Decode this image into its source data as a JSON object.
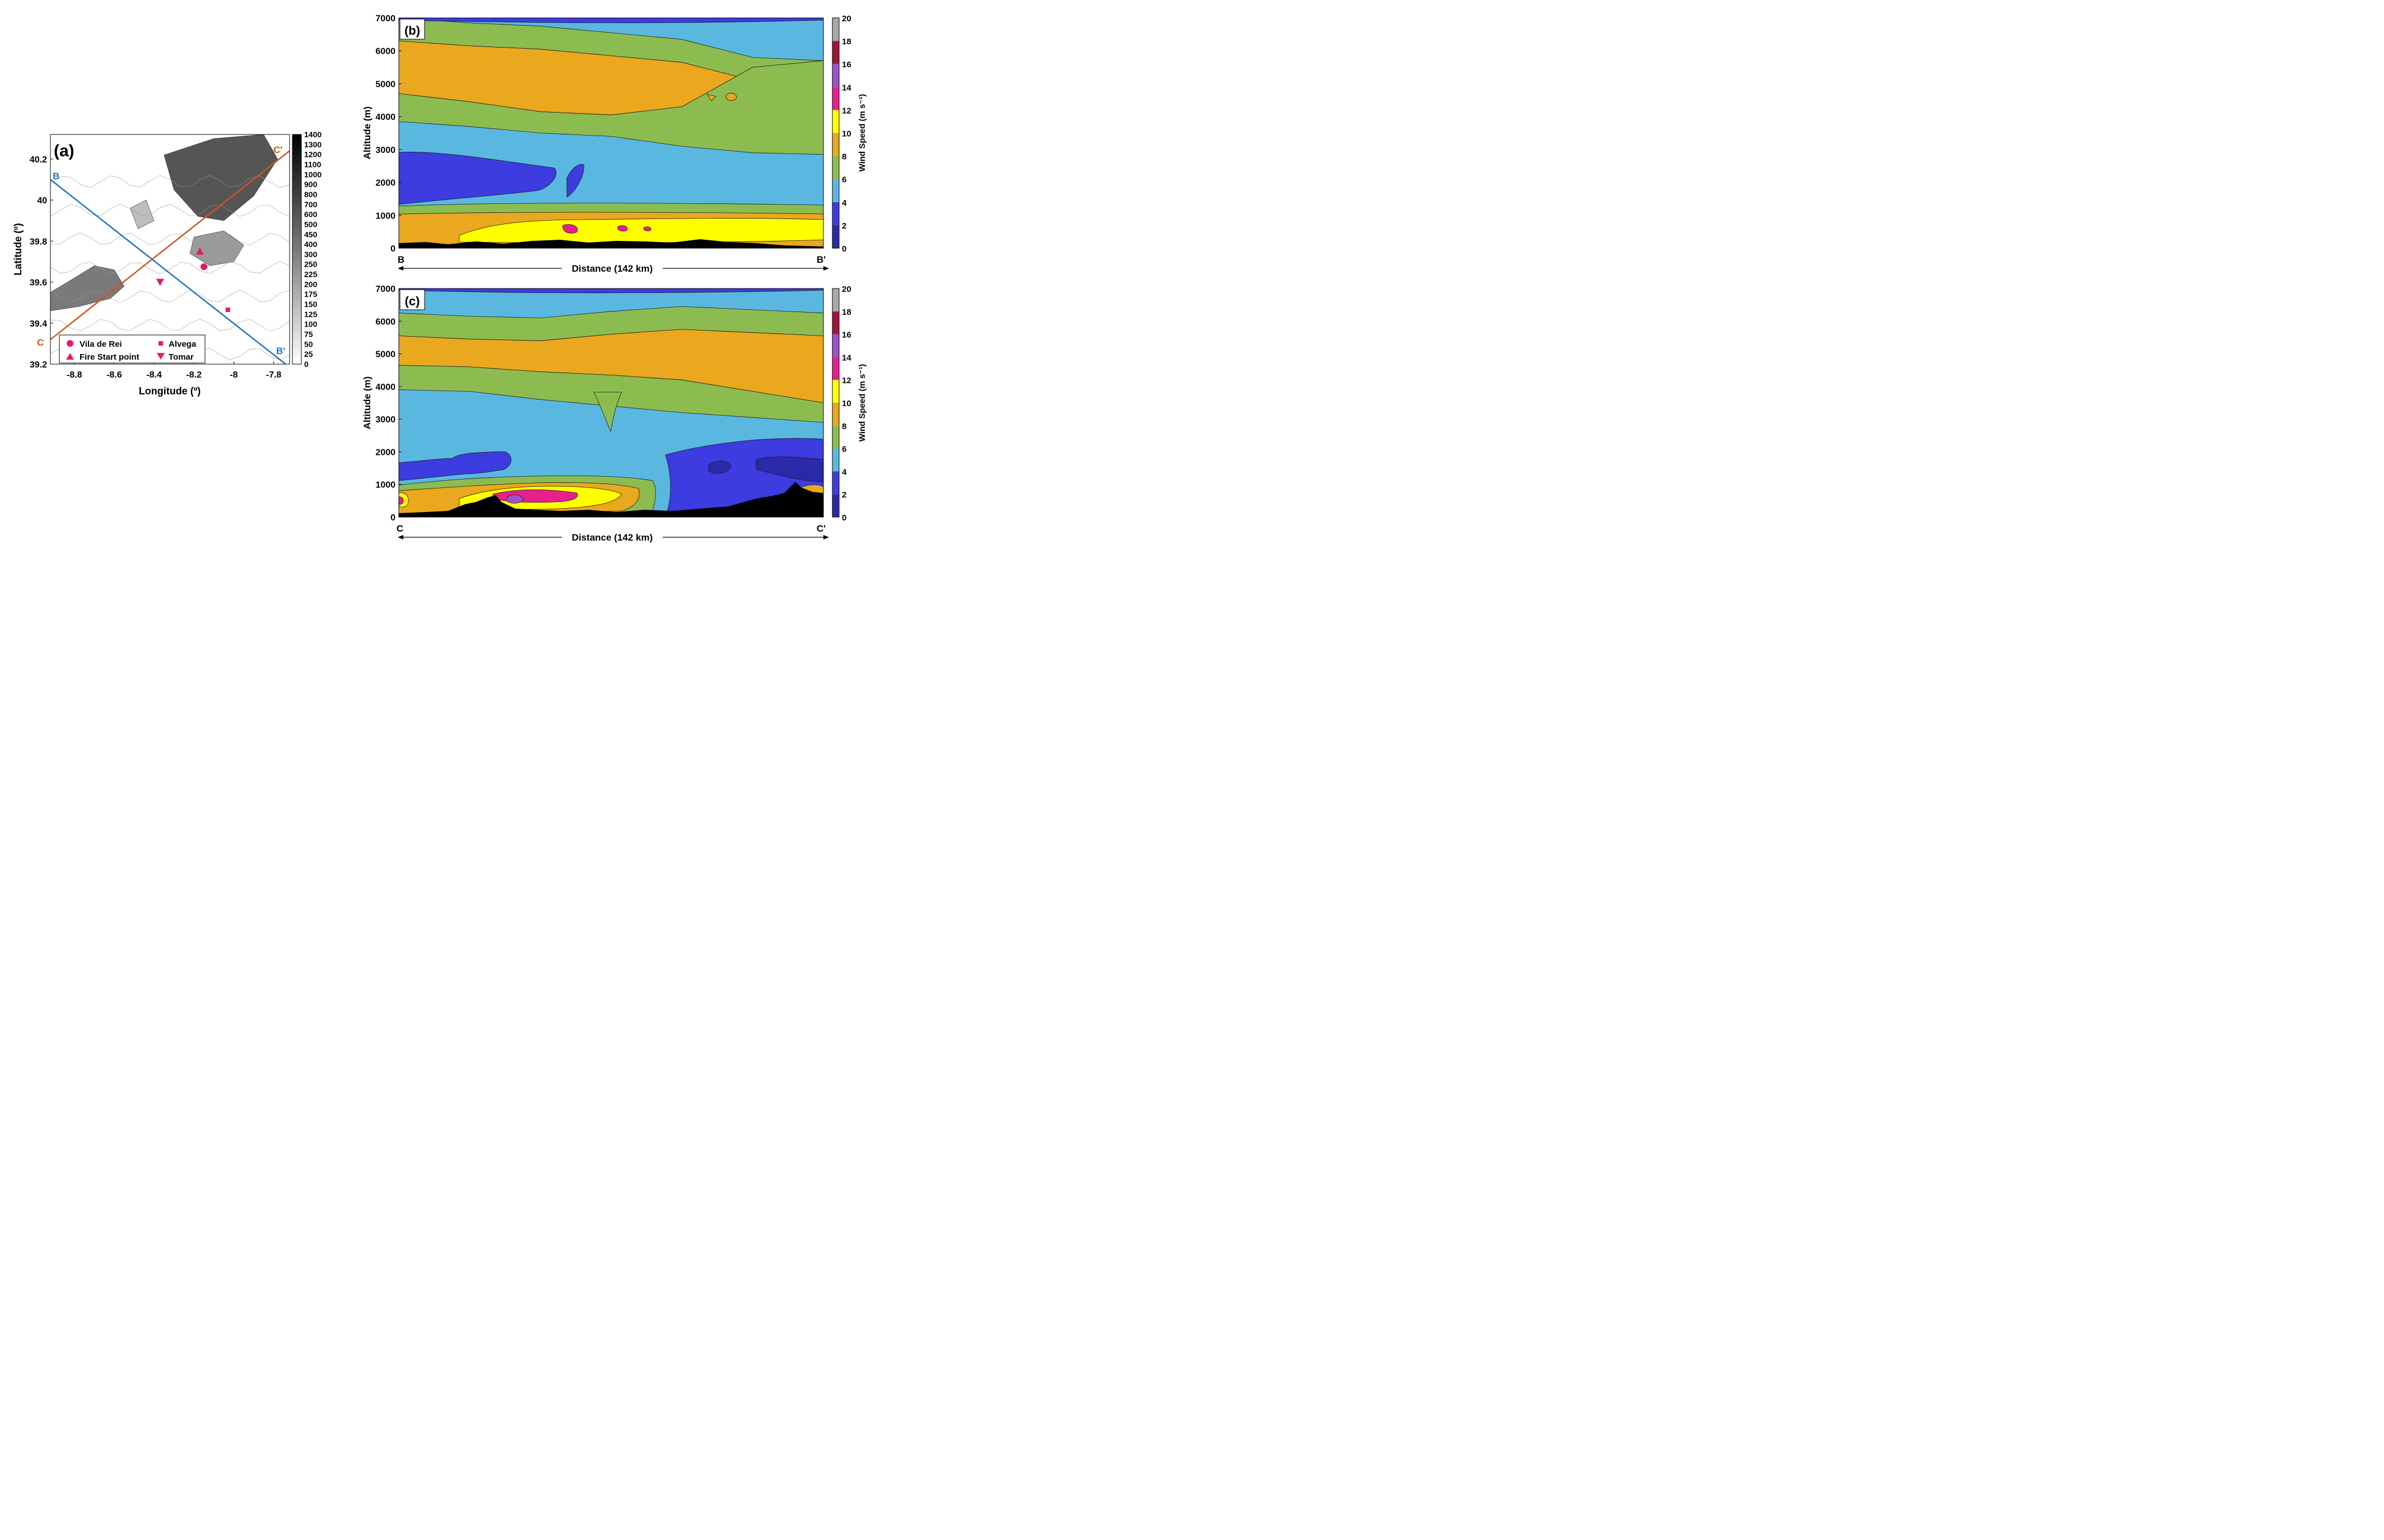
{
  "chart_data": [
    {
      "id": "a",
      "type": "heatmap",
      "panel_label": "(a)",
      "xlabel": "Longitude (º)",
      "ylabel": "Latitude (º)",
      "xlim": [
        -8.92,
        -7.72
      ],
      "ylim": [
        39.2,
        40.32
      ],
      "xticks": [
        -8.8,
        -8.6,
        -8.4,
        -8.2,
        -8,
        -7.8
      ],
      "xtick_labels": [
        "-8.8",
        "-8.6",
        "-8.4",
        "-8.2",
        "-8",
        "-7.8"
      ],
      "yticks": [
        39.2,
        39.4,
        39.6,
        39.8,
        40,
        40.2
      ],
      "ytick_labels": [
        "39.2",
        "39.4",
        "39.6",
        "39.8",
        "40",
        "40.2"
      ],
      "colorbar": {
        "levels": [
          "1400",
          "1300",
          "1200",
          "1100",
          "1000",
          "900",
          "800",
          "700",
          "600",
          "500",
          "450",
          "400",
          "300",
          "250",
          "225",
          "200",
          "175",
          "150",
          "125",
          "100",
          "75",
          "50",
          "25",
          "0"
        ],
        "colors": [
          "#000000",
          "#ffffff"
        ]
      },
      "lines": [
        {
          "name": "B",
          "end_name": "B'",
          "color": "#1f78c1",
          "x": [
            -8.92,
            -7.74
          ],
          "y": [
            40.1,
            39.2
          ]
        },
        {
          "name": "C",
          "end_name": "C'",
          "color": "#d4541a",
          "x": [
            -8.92,
            -7.72
          ],
          "y": [
            39.32,
            40.24
          ]
        }
      ],
      "markers": [
        {
          "name": "Vila de Rei",
          "shape": "circle",
          "x": -8.15,
          "y": 39.675
        },
        {
          "name": "Fire Start point",
          "shape": "triangle-up",
          "x": -8.17,
          "y": 39.75
        },
        {
          "name": "Alvega",
          "shape": "square",
          "x": -8.03,
          "y": 39.465
        },
        {
          "name": "Tomar",
          "shape": "triangle-down",
          "x": -8.37,
          "y": 39.6
        }
      ],
      "marker_color": "#e6186e",
      "grid": false,
      "legend_position": "bottom-left"
    },
    {
      "id": "b",
      "type": "heatmap",
      "panel_label": "(b)",
      "xlabel": "Distance (142 km)",
      "ylabel": "Altitude (m)",
      "x_start_label": "B",
      "x_end_label": "B'",
      "xlim": [
        0,
        142
      ],
      "ylim": [
        0,
        7000
      ],
      "yticks": [
        0,
        1000,
        2000,
        3000,
        4000,
        5000,
        6000,
        7000
      ],
      "colorbar": {
        "label": "Wind Speed (m s⁻¹)",
        "ticks": [
          "20",
          "18",
          "16",
          "14",
          "12",
          "10",
          "8",
          "6",
          "4",
          "2",
          "0"
        ],
        "colors": [
          "#2a2aa8",
          "#3c3ce0",
          "#5ab8e0",
          "#8cbc50",
          "#eaa81e",
          "#ffff00",
          "#e6208e",
          "#a050c8",
          "#a01838",
          "#a8a8a8"
        ]
      },
      "bands": [
        {
          "range": "0-2",
          "top_m": [
            0,
            0,
            0,
            0,
            0,
            0,
            0
          ]
        },
        {
          "range": "2-4",
          "top_m": [
            2750,
            2650,
            2350,
            1950,
            1300,
            1200,
            1150
          ]
        },
        {
          "range": "4-6",
          "top_m": [
            3850,
            3700,
            3500,
            3400,
            3100,
            2900,
            2850
          ]
        },
        {
          "range": "6-8",
          "top_m": [
            4700,
            4450,
            4150,
            4050,
            4300,
            5500,
            5700
          ]
        },
        {
          "range": "8-10",
          "top_m": [
            6300,
            6150,
            6050,
            5850,
            5650,
            5100,
            5000
          ]
        }
      ],
      "grid": false
    },
    {
      "id": "c",
      "type": "heatmap",
      "panel_label": "(c)",
      "xlabel": "Distance (142 km)",
      "ylabel": "Altitude (m)",
      "x_start_label": "C",
      "x_end_label": "C'",
      "xlim": [
        0,
        142
      ],
      "ylim": [
        0,
        7000
      ],
      "yticks": [
        0,
        1000,
        2000,
        3000,
        4000,
        5000,
        6000,
        7000
      ],
      "colorbar": {
        "label": "Wind Speed (m s⁻¹)",
        "ticks": [
          "20",
          "18",
          "16",
          "14",
          "12",
          "10",
          "8",
          "6",
          "4",
          "2",
          "0"
        ],
        "colors": [
          "#2a2aa8",
          "#3c3ce0",
          "#5ab8e0",
          "#8cbc50",
          "#eaa81e",
          "#ffff00",
          "#e6208e",
          "#a050c8",
          "#a01838",
          "#a8a8a8"
        ]
      },
      "bands": [
        {
          "range": "0-2",
          "top_m": [
            0,
            0,
            0,
            0,
            0,
            0,
            0
          ]
        },
        {
          "range": "2-4",
          "top_m": [
            1650,
            1950,
            1500,
            1100,
            1800,
            2300,
            2400
          ]
        },
        {
          "range": "4-6",
          "top_m": [
            3900,
            3850,
            3600,
            3400,
            3200,
            3050,
            2900
          ]
        },
        {
          "range": "6-8",
          "top_m": [
            4650,
            4600,
            4450,
            4350,
            4200,
            3850,
            3500
          ]
        },
        {
          "range": "8-10",
          "top_m": [
            5550,
            5450,
            5400,
            5600,
            5750,
            5650,
            5550
          ]
        }
      ],
      "grid": false
    }
  ]
}
